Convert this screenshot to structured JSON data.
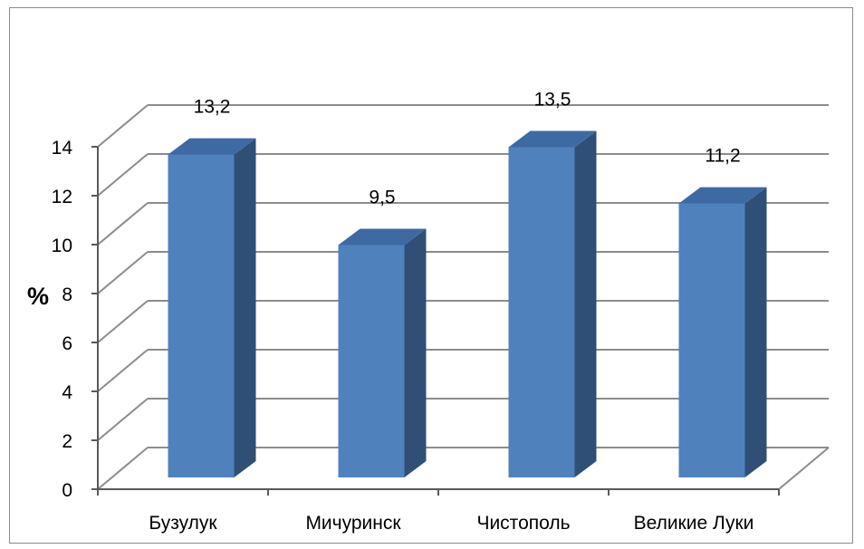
{
  "chart_data": {
    "type": "bar",
    "style": "3d-column",
    "categories": [
      "Бузулук",
      "Мичуринск",
      "Чистополь",
      "Великие Луки"
    ],
    "values": [
      13.2,
      9.5,
      13.5,
      11.2
    ],
    "data_labels": [
      "13,2",
      "9,5",
      "13,5",
      "11,2"
    ],
    "title": "",
    "xlabel": "",
    "ylabel": "%",
    "ylim": [
      0,
      14
    ],
    "yticks": [
      0,
      2,
      4,
      6,
      8,
      10,
      12,
      14
    ],
    "grid": true,
    "legend": "none",
    "colors": {
      "bar_front": "#4f81bd",
      "bar_side": "#2f4f77",
      "bar_top": "#3d6aa3",
      "gridline": "#8c8c8c",
      "axis": "#595959"
    }
  }
}
